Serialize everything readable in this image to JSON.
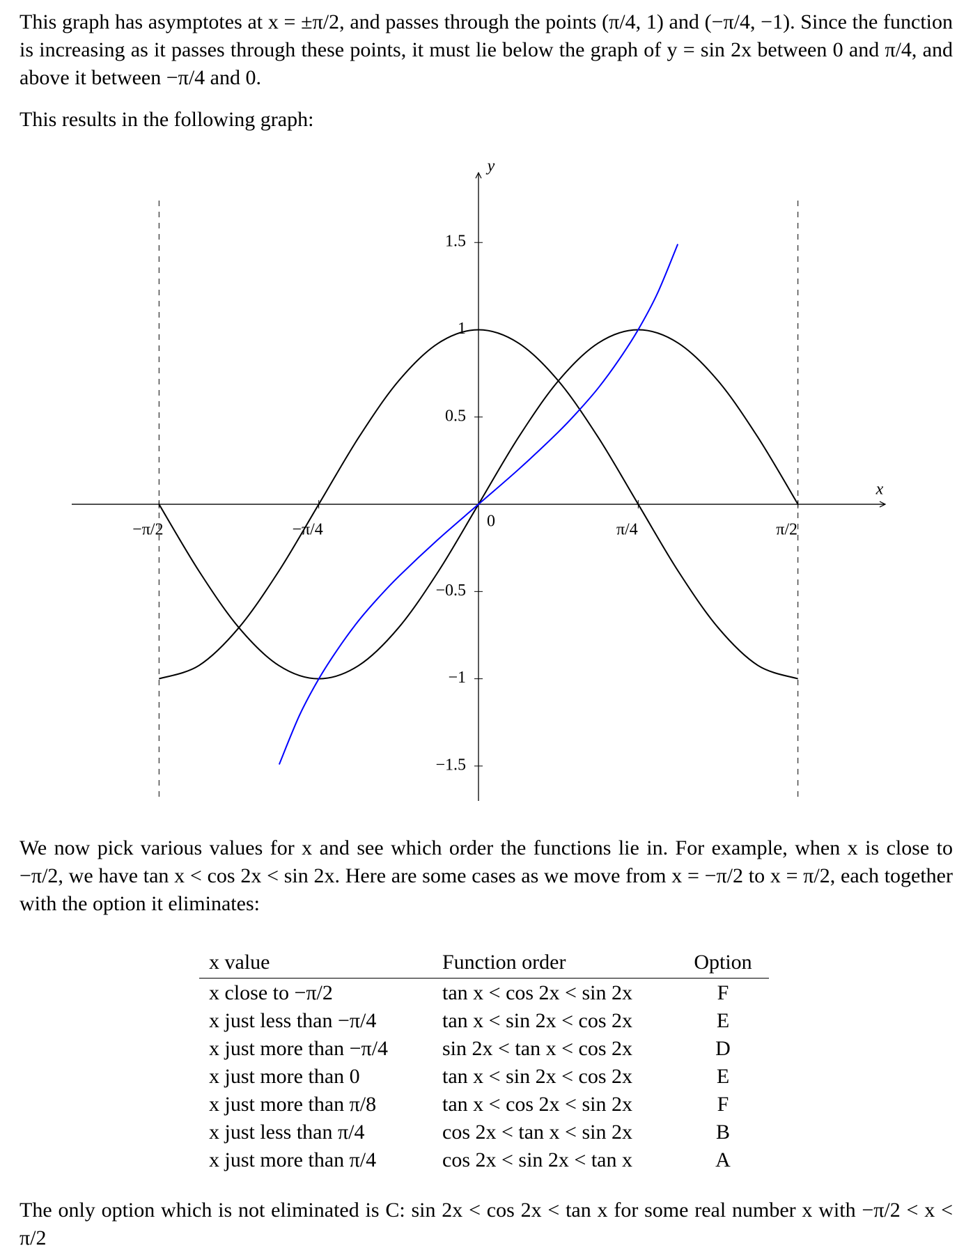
{
  "intro": {
    "paragraph": "This graph has asymptotes at x = ±π/2, and passes through the points (π/4, 1) and (−π/4, −1). Since the function is increasing as it passes through these points, it must lie below the graph of y = sin 2x between 0 and π/4, and above it between −π/4 and 0.",
    "lead": "This results in the following graph:"
  },
  "chart_data": {
    "type": "line",
    "x_label": "x",
    "y_label": "y",
    "origin_label": "0",
    "xlim": [
      -2,
      2
    ],
    "ylim": [
      -1.7,
      1.9
    ],
    "xticks": [
      {
        "value": -1.5708,
        "label": "−π/2"
      },
      {
        "value": -0.7854,
        "label": "−π/4"
      },
      {
        "value": 0.7854,
        "label": "π/4"
      },
      {
        "value": 1.5708,
        "label": "π/2"
      }
    ],
    "yticks": [
      {
        "value": -1.5,
        "label": "−1.5"
      },
      {
        "value": -1,
        "label": "−1"
      },
      {
        "value": -0.5,
        "label": "−0.5"
      },
      {
        "value": 0.5,
        "label": "0.5"
      },
      1,
      1.5
    ],
    "asymptotes": [
      -1.5708,
      1.5708
    ],
    "series": [
      {
        "color": "#000000",
        "x": [
          -1.5708,
          -1.3744,
          -1.1781,
          -0.9817,
          -0.7854,
          -0.589,
          -0.3927,
          -0.1963,
          0,
          0.1963,
          0.3927,
          0.589,
          0.7854,
          0.9817,
          1.1781,
          1.3744,
          1.5708
        ],
        "values": [
          0,
          -0.383,
          -0.707,
          -0.924,
          -1,
          -0.924,
          -0.707,
          -0.383,
          0,
          0.383,
          0.707,
          0.924,
          1,
          0.924,
          0.707,
          0.383,
          0
        ]
      },
      {
        "color": "#000000",
        "x": [
          -1.5708,
          -1.3744,
          -1.1781,
          -0.9817,
          -0.7854,
          -0.589,
          -0.3927,
          -0.1963,
          0,
          0.1963,
          0.3927,
          0.589,
          0.7854,
          0.9817,
          1.1781,
          1.3744,
          1.5708
        ],
        "values": [
          -1,
          -0.924,
          -0.707,
          -0.383,
          0,
          0.383,
          0.707,
          0.924,
          1,
          0.924,
          0.707,
          0.383,
          0,
          -0.383,
          -0.707,
          -0.924,
          -1
        ]
      },
      {
        "color": "#0000ff",
        "x": [
          -0.98,
          -0.88,
          -0.785,
          -0.69,
          -0.59,
          -0.49,
          -0.39,
          -0.2,
          0,
          0.2,
          0.39,
          0.49,
          0.59,
          0.69,
          0.785,
          0.88,
          0.98
        ],
        "values": [
          -1.491,
          -1.209,
          -1,
          -0.827,
          -0.668,
          -0.533,
          -0.411,
          -0.203,
          0,
          0.203,
          0.411,
          0.533,
          0.668,
          0.827,
          1,
          1.209,
          1.491
        ]
      }
    ]
  },
  "middle": {
    "paragraph": "We now pick various values for x and see which order the functions lie in. For example, when x is close to −π/2, we have tan x < cos 2x < sin 2x. Here are some cases as we move from x = −π/2 to x = π/2, each together with the option it eliminates:"
  },
  "table": {
    "header": [
      "x value",
      "Function order",
      "Option"
    ],
    "rows": [
      [
        "x close to −π/2",
        "tan x < cos 2x < sin 2x",
        "F"
      ],
      [
        "x just less than −π/4",
        "tan x < sin 2x < cos 2x",
        "E"
      ],
      [
        "x just more than −π/4",
        "sin 2x < tan x < cos 2x",
        "D"
      ],
      [
        "x just more than 0",
        "tan x < sin 2x < cos 2x",
        "E"
      ],
      [
        "x just more than π/8",
        "tan x < cos 2x < sin 2x",
        "F"
      ],
      [
        "x just less than π/4",
        "cos 2x < tan x < sin 2x",
        "B"
      ],
      [
        "x just more than π/4",
        "cos 2x < sin 2x < tan x",
        "A"
      ]
    ]
  },
  "conclusion": {
    "paragraph": "The only option which is not eliminated is C: sin 2x < cos 2x < tan x for some real number x with −π/2 < x < π/2"
  }
}
